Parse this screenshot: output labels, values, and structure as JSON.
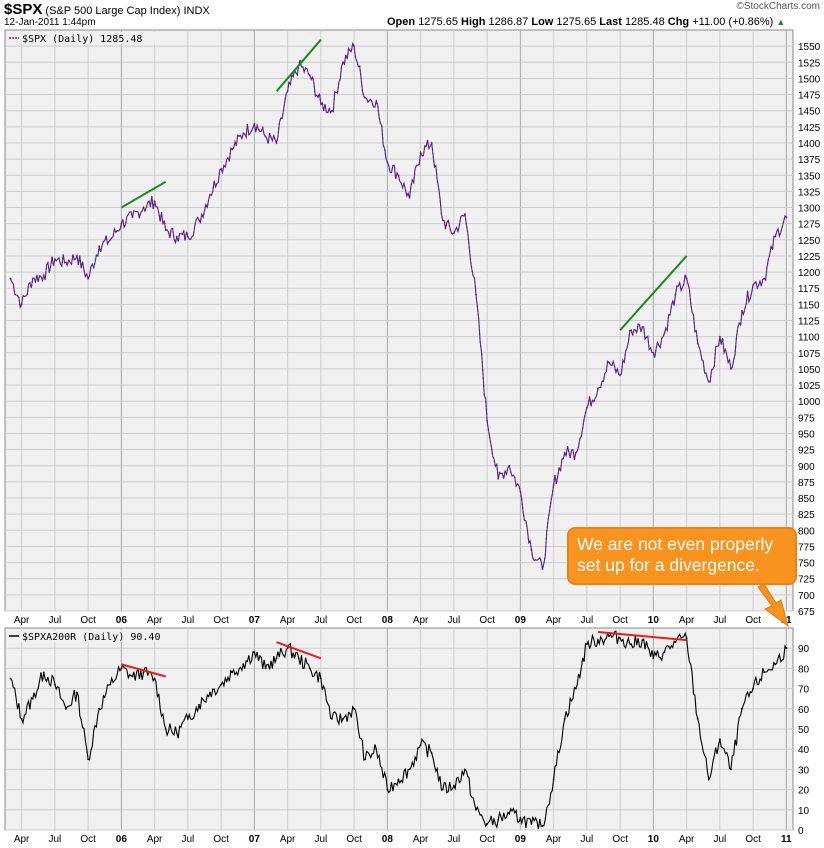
{
  "header": {
    "symbol": "$SPX",
    "name": "(S&P 500 Large Cap Index)",
    "exchange": "INDX",
    "datetime": "12-Jan-2011 1:44pm",
    "open_label": "Open",
    "open": "1275.65",
    "high_label": "High",
    "high": "1286.87",
    "low_label": "Low",
    "low": "1275.65",
    "last_label": "Last",
    "last": "1285.48",
    "chg_label": "Chg",
    "chg": "+11.00 (+0.86%)",
    "brand": "©StockCharts.com"
  },
  "callout": {
    "line1": "We are not even properly",
    "line2": "set up for a divergence."
  },
  "colors": {
    "price": "#7a1a6a",
    "price_alt": "#2a2aa8",
    "breadth": "#000000",
    "bullish_trendline": "#1a8a1a",
    "bearish_trendline": "#e0201a",
    "callout": "#f7931e",
    "panel_bg": "#f0f0f0",
    "grid": "#cccccc"
  },
  "chart_data": [
    {
      "type": "line",
      "legend": "$SPX (Daily) 1285.48",
      "series": [
        {
          "name": "$SPX (Daily)",
          "x": [
            "2005-03",
            "2005-04",
            "2005-05",
            "2005-06",
            "2005-07",
            "2005-08",
            "2005-09",
            "2005-10",
            "2005-11",
            "2005-12",
            "2006-01",
            "2006-02",
            "2006-03",
            "2006-04",
            "2006-05",
            "2006-06",
            "2006-07",
            "2006-08",
            "2006-09",
            "2006-10",
            "2006-11",
            "2006-12",
            "2007-01",
            "2007-02",
            "2007-03",
            "2007-04",
            "2007-05",
            "2007-06",
            "2007-07",
            "2007-08",
            "2007-09",
            "2007-10",
            "2007-11",
            "2007-12",
            "2008-01",
            "2008-02",
            "2008-03",
            "2008-04",
            "2008-05",
            "2008-06",
            "2008-07",
            "2008-08",
            "2008-09",
            "2008-10",
            "2008-11",
            "2008-12",
            "2009-01",
            "2009-02",
            "2009-03",
            "2009-04",
            "2009-05",
            "2009-06",
            "2009-07",
            "2009-08",
            "2009-09",
            "2009-10",
            "2009-11",
            "2009-12",
            "2010-01",
            "2010-02",
            "2010-03",
            "2010-04",
            "2010-05",
            "2010-06",
            "2010-07",
            "2010-08",
            "2010-09",
            "2010-10",
            "2010-11",
            "2010-12",
            "2011-01"
          ],
          "values": [
            1190,
            1150,
            1190,
            1195,
            1220,
            1215,
            1225,
            1190,
            1240,
            1250,
            1275,
            1285,
            1300,
            1310,
            1265,
            1255,
            1255,
            1280,
            1320,
            1360,
            1390,
            1415,
            1430,
            1410,
            1400,
            1480,
            1520,
            1505,
            1460,
            1450,
            1525,
            1550,
            1470,
            1465,
            1370,
            1350,
            1315,
            1385,
            1400,
            1280,
            1260,
            1290,
            1165,
            970,
            880,
            900,
            860,
            770,
            740,
            870,
            920,
            920,
            990,
            1020,
            1060,
            1040,
            1110,
            1115,
            1075,
            1105,
            1165,
            1190,
            1090,
            1030,
            1100,
            1050,
            1140,
            1180,
            1190,
            1255,
            1285
          ]
        }
      ],
      "ylim": [
        675,
        1575
      ],
      "yticks": [
        675,
        700,
        725,
        750,
        775,
        800,
        825,
        850,
        875,
        900,
        925,
        950,
        975,
        1000,
        1025,
        1050,
        1075,
        1100,
        1125,
        1150,
        1175,
        1200,
        1225,
        1250,
        1275,
        1300,
        1325,
        1350,
        1375,
        1400,
        1425,
        1450,
        1475,
        1500,
        1525,
        1550
      ],
      "x_tick_labels": [
        "Apr",
        "Jul",
        "Oct",
        "06",
        "Apr",
        "Jul",
        "Oct",
        "07",
        "Apr",
        "Jul",
        "Oct",
        "08",
        "Apr",
        "Jul",
        "Oct",
        "09",
        "Apr",
        "Jul",
        "Oct",
        "10",
        "Apr",
        "Jul",
        "Oct",
        "11"
      ],
      "annotations": [
        {
          "type": "trendline",
          "color": "bullish_trendline",
          "from": [
            "2006-01",
            1300
          ],
          "to": [
            "2006-05",
            1340
          ]
        },
        {
          "type": "trendline",
          "color": "bullish_trendline",
          "from": [
            "2007-03",
            1480
          ],
          "to": [
            "2007-07",
            1560
          ]
        },
        {
          "type": "trendline",
          "color": "bullish_trendline",
          "from": [
            "2009-10",
            1110
          ],
          "to": [
            "2010-04",
            1225
          ]
        }
      ],
      "grid": true
    },
    {
      "type": "line",
      "legend": "$SPXA200R (Daily) 90.40",
      "series": [
        {
          "name": "$SPXA200R (Daily)",
          "x": [
            "2005-03",
            "2005-04",
            "2005-05",
            "2005-06",
            "2005-07",
            "2005-08",
            "2005-09",
            "2005-10",
            "2005-11",
            "2005-12",
            "2006-01",
            "2006-02",
            "2006-03",
            "2006-04",
            "2006-05",
            "2006-06",
            "2006-07",
            "2006-08",
            "2006-09",
            "2006-10",
            "2006-11",
            "2006-12",
            "2007-01",
            "2007-02",
            "2007-03",
            "2007-04",
            "2007-05",
            "2007-06",
            "2007-07",
            "2007-08",
            "2007-09",
            "2007-10",
            "2007-11",
            "2007-12",
            "2008-01",
            "2008-02",
            "2008-03",
            "2008-04",
            "2008-05",
            "2008-06",
            "2008-07",
            "2008-08",
            "2008-09",
            "2008-10",
            "2008-11",
            "2008-12",
            "2009-01",
            "2009-02",
            "2009-03",
            "2009-04",
            "2009-05",
            "2009-06",
            "2009-07",
            "2009-08",
            "2009-09",
            "2009-10",
            "2009-11",
            "2009-12",
            "2010-01",
            "2010-02",
            "2010-03",
            "2010-04",
            "2010-05",
            "2010-06",
            "2010-07",
            "2010-08",
            "2010-09",
            "2010-10",
            "2010-11",
            "2010-12",
            "2011-01"
          ],
          "values": [
            75,
            55,
            65,
            78,
            72,
            60,
            68,
            35,
            60,
            72,
            80,
            76,
            78,
            75,
            50,
            48,
            55,
            62,
            68,
            72,
            78,
            82,
            88,
            80,
            85,
            90,
            85,
            80,
            75,
            55,
            55,
            60,
            35,
            40,
            20,
            25,
            30,
            42,
            38,
            20,
            22,
            30,
            10,
            3,
            5,
            8,
            6,
            3,
            2,
            25,
            55,
            70,
            92,
            94,
            96,
            95,
            92,
            94,
            85,
            88,
            93,
            95,
            55,
            25,
            45,
            30,
            60,
            70,
            78,
            82,
            90
          ]
        }
      ],
      "ylim": [
        0,
        100
      ],
      "yticks": [
        0,
        10,
        20,
        30,
        40,
        50,
        60,
        70,
        80,
        90
      ],
      "x_tick_labels": [
        "Apr",
        "Jul",
        "Oct",
        "06",
        "Apr",
        "Jul",
        "Oct",
        "07",
        "Apr",
        "Jul",
        "Oct",
        "08",
        "Apr",
        "Jul",
        "Oct",
        "09",
        "Apr",
        "Jul",
        "Oct",
        "10",
        "Apr",
        "Jul",
        "Oct",
        "11"
      ],
      "annotations": [
        {
          "type": "trendline",
          "color": "bearish_trendline",
          "from": [
            "2006-01",
            82
          ],
          "to": [
            "2006-05",
            76
          ]
        },
        {
          "type": "trendline",
          "color": "bearish_trendline",
          "from": [
            "2007-03",
            93
          ],
          "to": [
            "2007-07",
            85
          ]
        },
        {
          "type": "trendline",
          "color": "bearish_trendline",
          "from": [
            "2009-08",
            98
          ],
          "to": [
            "2010-04",
            94
          ]
        }
      ],
      "grid": true
    }
  ]
}
